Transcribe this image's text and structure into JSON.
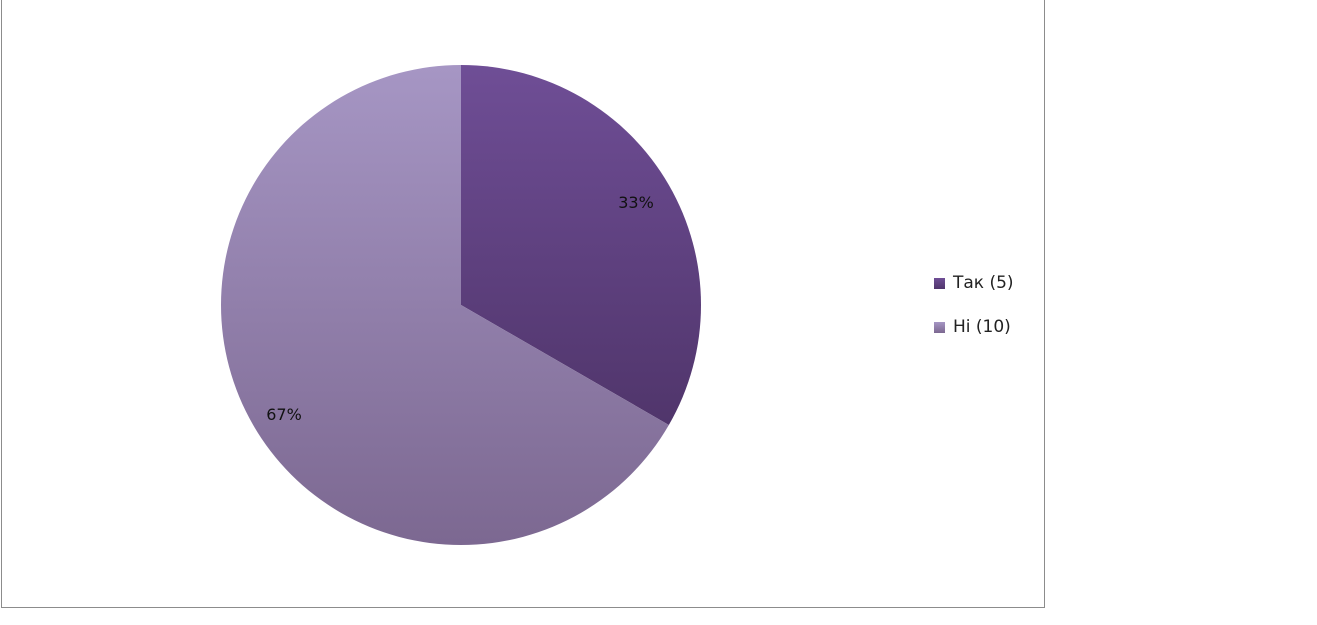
{
  "chart_data": {
    "type": "pie",
    "title": "",
    "slices": [
      {
        "label": "Так (5)",
        "value": 5,
        "percent_label": "33%",
        "color_top": "#6f4e96",
        "color_bottom": "#50356b"
      },
      {
        "label": "Ні (10)",
        "value": 10,
        "percent_label": "67%",
        "color_top": "#a696c4",
        "color_bottom": "#7c6891"
      }
    ],
    "start_angle": "12 o'clock",
    "direction": "clockwise",
    "legend_position": "right"
  }
}
